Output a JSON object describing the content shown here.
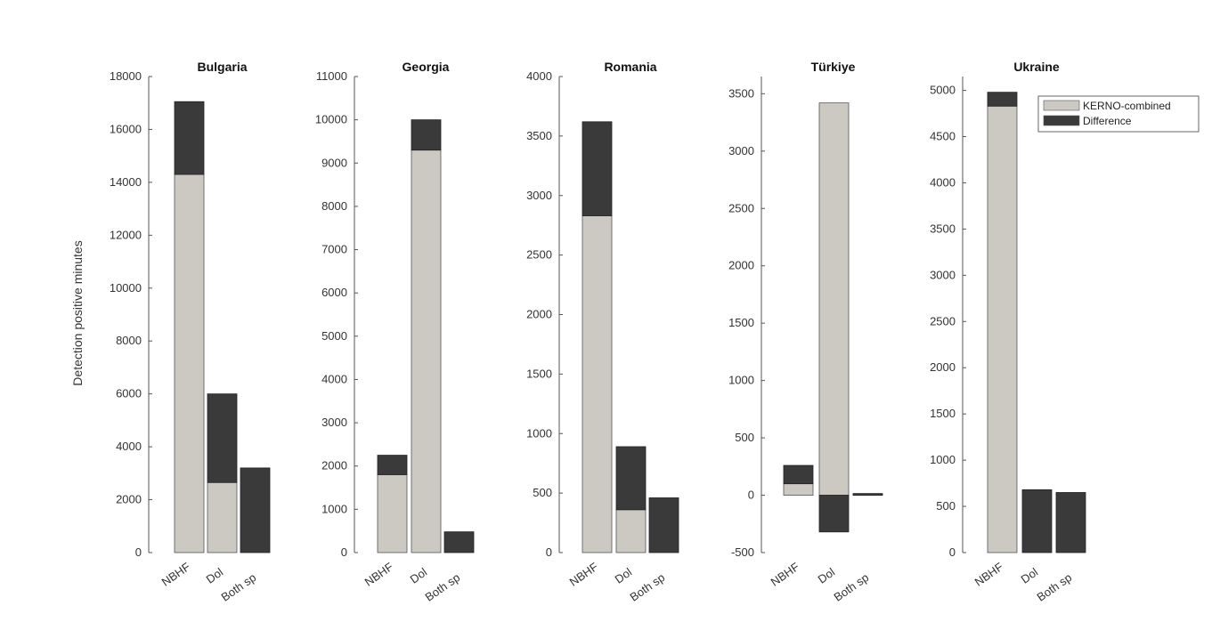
{
  "chart_data": {
    "type": "bar",
    "ylabel": "Detection positive minutes",
    "legend": {
      "placement": "top-right",
      "entries": [
        "KERNO-combined",
        "Difference"
      ]
    },
    "colors": {
      "KERNO-combined": "#ccc8c2",
      "Difference": "#3a3a3a",
      "axis": "#555555"
    },
    "panels": [
      {
        "title": "Bulgaria",
        "ylim": [
          0,
          18000
        ],
        "yticks": [
          "0",
          "2000",
          "4000",
          "6000",
          "8000",
          "10000",
          "12000",
          "14000",
          "16000",
          "18000"
        ],
        "categories": [
          "NBHF",
          "Dol",
          "Both sp"
        ],
        "series": [
          {
            "name": "KERNO-combined",
            "values": [
              14300,
              2650,
              0
            ]
          },
          {
            "name": "Difference",
            "values": [
              2750,
              3350,
              3200
            ]
          }
        ]
      },
      {
        "title": "Georgia",
        "ylim": [
          0,
          11000
        ],
        "yticks": [
          "0",
          "1000",
          "2000",
          "3000",
          "4000",
          "5000",
          "6000",
          "7000",
          "8000",
          "9000",
          "10000",
          "11000"
        ],
        "categories": [
          "NBHF",
          "Dol",
          "Both sp"
        ],
        "series": [
          {
            "name": "KERNO-combined",
            "values": [
              1800,
              9300,
              0
            ]
          },
          {
            "name": "Difference",
            "values": [
              450,
              700,
              480
            ]
          }
        ]
      },
      {
        "title": "Romania",
        "ylim": [
          0,
          4000
        ],
        "yticks": [
          "0",
          "500",
          "1000",
          "1500",
          "2000",
          "2500",
          "3000",
          "3500",
          "4000"
        ],
        "categories": [
          "NBHF",
          "Dol",
          "Both sp"
        ],
        "series": [
          {
            "name": "KERNO-combined",
            "values": [
              2830,
              360,
              0
            ]
          },
          {
            "name": "Difference",
            "values": [
              790,
              530,
              460
            ]
          }
        ]
      },
      {
        "title": "Türkiye",
        "ylim": [
          -500,
          3650
        ],
        "yticks": [
          "-500",
          "0",
          "500",
          "1000",
          "1500",
          "2000",
          "2500",
          "3000",
          "3500"
        ],
        "categories": [
          "NBHF",
          "Dol",
          "Both sp"
        ],
        "series": [
          {
            "name": "KERNO-combined",
            "values": [
              100,
              3420,
              0
            ]
          },
          {
            "name": "Difference",
            "values": [
              160,
              -320,
              15
            ]
          }
        ]
      },
      {
        "title": "Ukraine",
        "ylim": [
          0,
          5150
        ],
        "yticks": [
          "0",
          "500",
          "1000",
          "1500",
          "2000",
          "2500",
          "3000",
          "3500",
          "4000",
          "4500",
          "5000"
        ],
        "categories": [
          "NBHF",
          "Dol",
          "Both sp"
        ],
        "series": [
          {
            "name": "KERNO-combined",
            "values": [
              4830,
              0,
              0
            ]
          },
          {
            "name": "Difference",
            "values": [
              150,
              680,
              650
            ]
          }
        ]
      }
    ]
  }
}
